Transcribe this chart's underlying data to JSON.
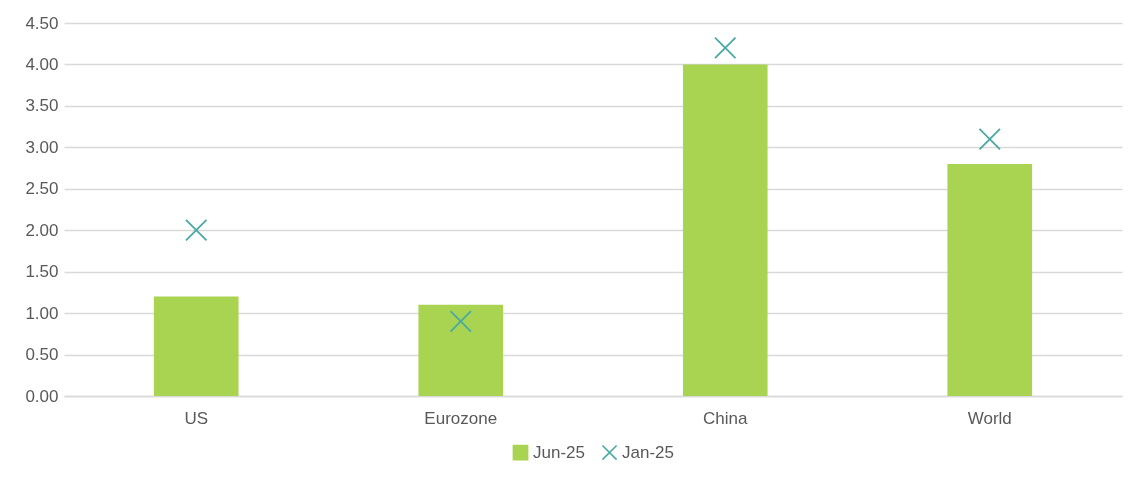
{
  "chart_data": {
    "type": "bar",
    "categories": [
      "US",
      "Eurozone",
      "China",
      "World"
    ],
    "series": [
      {
        "name": "Jun-25",
        "color": "#a9d452",
        "values": [
          1.2,
          1.1,
          4.0,
          2.8
        ]
      },
      {
        "name": "Jan-25",
        "type": "scatter",
        "marker": "cross",
        "color": "#4aa9a2",
        "values": [
          2.0,
          0.9,
          4.2,
          3.1
        ]
      }
    ],
    "ylim": [
      0,
      4.5
    ],
    "yticks": [
      {
        "value": 0,
        "label": "0.00"
      },
      {
        "value": 0.5,
        "label": "0.50"
      },
      {
        "value": 1,
        "label": "1.00"
      },
      {
        "value": 1.5,
        "label": "1.50"
      },
      {
        "value": 2,
        "label": "2.00"
      },
      {
        "value": 2.5,
        "label": "2.50"
      },
      {
        "value": 3,
        "label": "3.00"
      },
      {
        "value": 3.5,
        "label": "3.50"
      },
      {
        "value": 4,
        "label": "4.00"
      },
      {
        "value": 4.5,
        "label": "4.50"
      }
    ],
    "grid": "y",
    "legend": "bottom"
  }
}
